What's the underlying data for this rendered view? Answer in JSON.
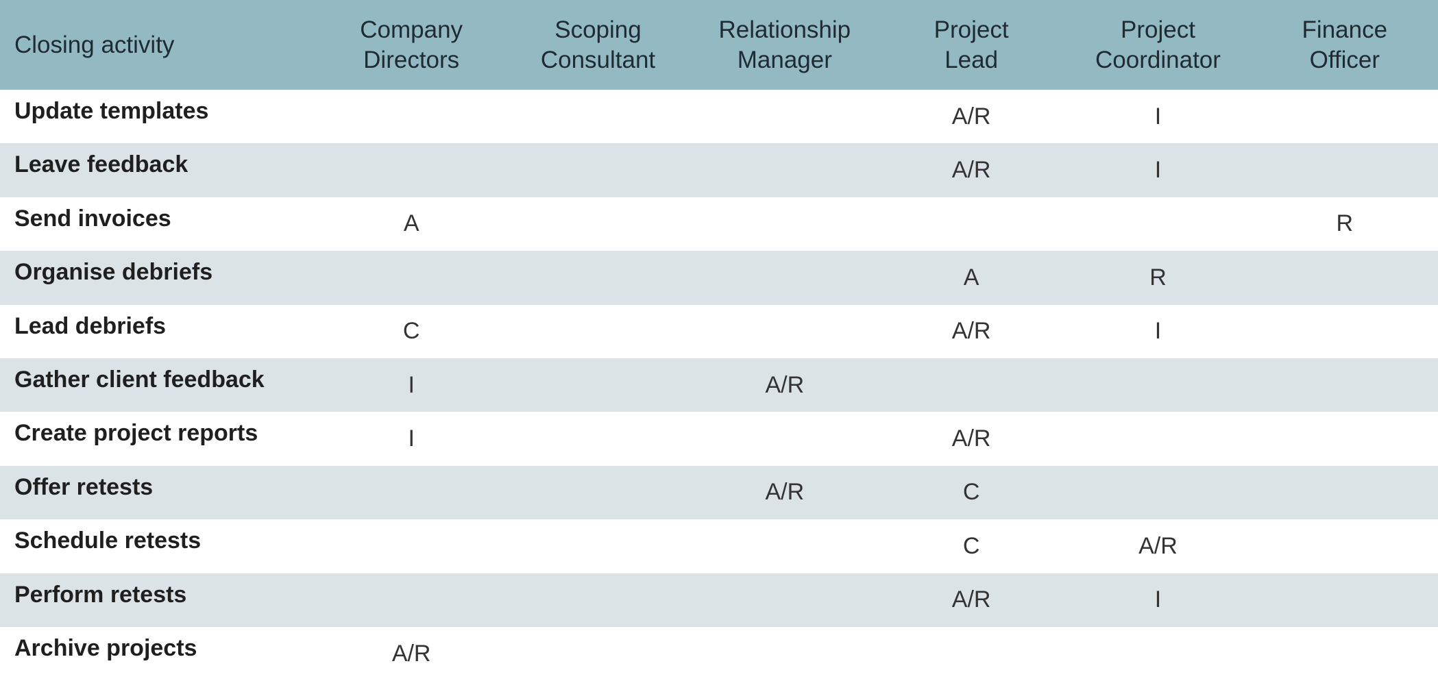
{
  "table": {
    "header": [
      "Closing activity",
      "Company Directors",
      "Scoping Consultant",
      "Relationship Manager",
      "Project Lead",
      "Project Coordinator",
      "Finance Officer"
    ],
    "rows": [
      {
        "activity": "Update templates",
        "cells": [
          null,
          null,
          null,
          "A/R",
          "I",
          null
        ]
      },
      {
        "activity": "Leave feedback",
        "cells": [
          null,
          null,
          null,
          "A/R",
          "I",
          null
        ]
      },
      {
        "activity": "Send invoices",
        "cells": [
          "A",
          null,
          null,
          null,
          null,
          "R"
        ]
      },
      {
        "activity": "Organise debriefs",
        "cells": [
          null,
          null,
          null,
          "A",
          "R",
          null
        ]
      },
      {
        "activity": "Lead debriefs",
        "cells": [
          "C",
          null,
          null,
          "A/R",
          "I",
          null
        ]
      },
      {
        "activity": "Gather client feedback",
        "cells": [
          "I",
          null,
          "A/R",
          null,
          null,
          null
        ]
      },
      {
        "activity": "Create project reports",
        "cells": [
          "I",
          null,
          null,
          "A/R",
          null,
          null
        ]
      },
      {
        "activity": "Offer retests",
        "cells": [
          null,
          null,
          "A/R",
          "C",
          null,
          null
        ]
      },
      {
        "activity": "Schedule retests",
        "cells": [
          null,
          null,
          null,
          "C",
          "A/R",
          null
        ]
      },
      {
        "activity": "Perform retests",
        "cells": [
          null,
          null,
          null,
          "A/R",
          "I",
          null
        ]
      },
      {
        "activity": "Archive projects",
        "cells": [
          "A/R",
          null,
          null,
          null,
          null,
          null
        ]
      }
    ]
  }
}
